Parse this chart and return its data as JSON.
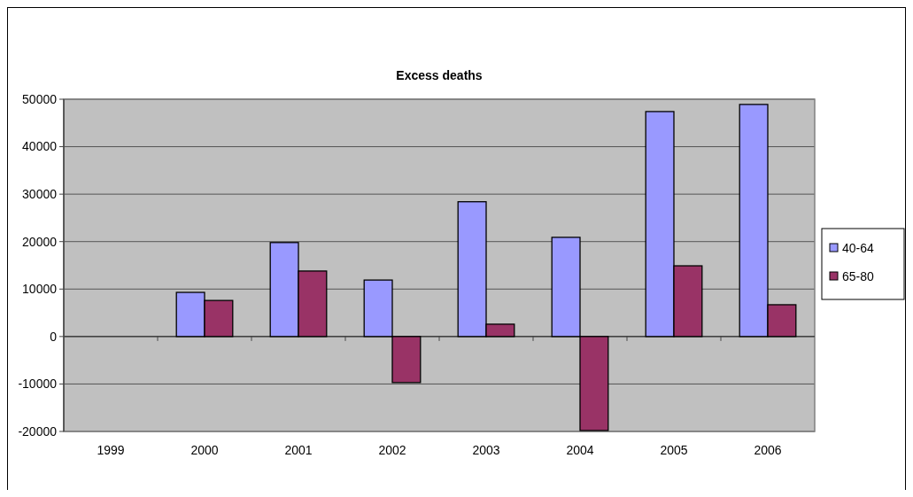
{
  "chart_data": {
    "type": "bar",
    "title": "Excess deaths",
    "categories": [
      "1999",
      "2000",
      "2001",
      "2002",
      "2003",
      "2004",
      "2005",
      "2006"
    ],
    "series": [
      {
        "name": "40-64",
        "color": "#9999ff",
        "values": [
          null,
          9300,
          19800,
          11900,
          28400,
          20900,
          47400,
          48900
        ]
      },
      {
        "name": "65-80",
        "color": "#993366",
        "values": [
          null,
          7600,
          13800,
          -9700,
          2600,
          -19800,
          14900,
          6700
        ]
      }
    ],
    "ylim": [
      -20000,
      50000
    ],
    "yticks": [
      -20000,
      -10000,
      0,
      10000,
      20000,
      30000,
      40000,
      50000
    ],
    "grid": "y",
    "legend": "right"
  }
}
